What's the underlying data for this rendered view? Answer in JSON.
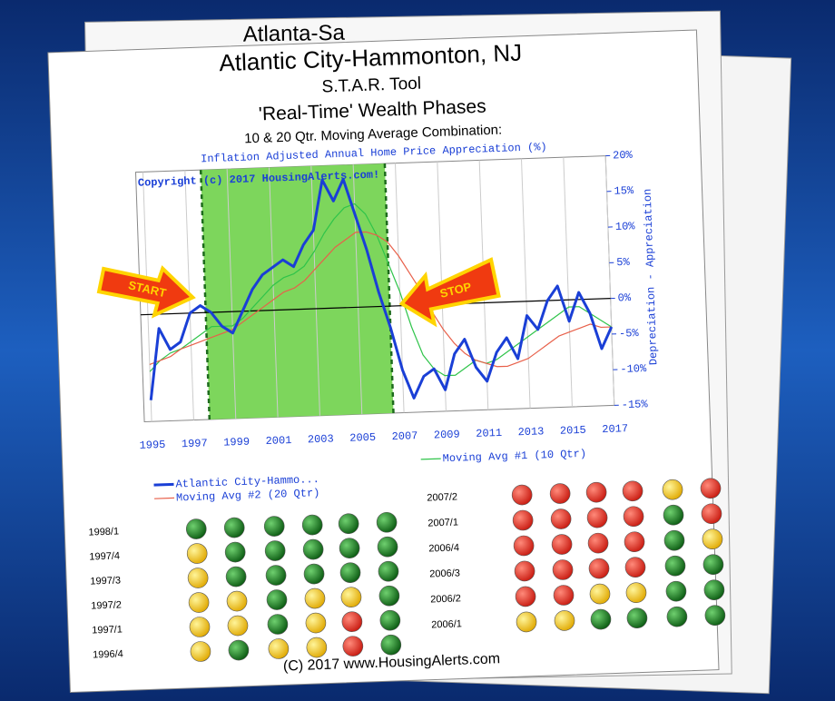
{
  "back_title": "Atlanta-Sa",
  "header": {
    "title": "Atlantic City-Hammonton, NJ",
    "subtitle": "S.T.A.R. Tool",
    "phase_title": "'Real-Time' Wealth Phases",
    "method": "10 & 20 Qtr. Moving Average Combination:"
  },
  "chart_data": {
    "type": "line",
    "title": "Inflation Adjusted Annual Home Price Appreciation (%)",
    "copyright": "Copyright (c) 2017 HousingAlerts.com!",
    "y_label": "Depreciation - Appreciation",
    "annotations": [
      "START",
      "STOP"
    ],
    "shaded_range": [
      1997.75,
      2006.5
    ],
    "shaded_color": "#7dd65c",
    "x": [
      1995,
      1995.5,
      1996,
      1996.5,
      1997,
      1997.5,
      1998,
      1998.5,
      1999,
      1999.5,
      2000,
      2000.5,
      2001,
      2001.5,
      2002,
      2002.5,
      2003,
      2003.5,
      2004,
      2004.5,
      2005,
      2005.5,
      2006,
      2006.5,
      2007,
      2007.5,
      2008,
      2008.5,
      2009,
      2009.5,
      2010,
      2010.5,
      2011,
      2011.5,
      2012,
      2012.5,
      2013,
      2013.5,
      2014,
      2014.5,
      2015,
      2015.5,
      2016,
      2016.5,
      2017
    ],
    "series": [
      {
        "name": "Atlantic City-Hammo...",
        "color": "#1a3fd6",
        "width": 3,
        "values": [
          -12,
          -2,
          -5,
          -4,
          0,
          1,
          0,
          -2,
          -3,
          0,
          3,
          5,
          6,
          7,
          6,
          9,
          11,
          18,
          15,
          18,
          13,
          8,
          2,
          -3,
          -9,
          -13,
          -10,
          -9,
          -12,
          -7,
          -5,
          -9,
          -11,
          -7,
          -5,
          -8,
          -2,
          -4,
          0,
          2,
          -3,
          1,
          -2,
          -7,
          -4
        ]
      },
      {
        "name": "Moving Avg #2 (20 Qtr)",
        "color": "#e8604a",
        "width": 1.2,
        "values": [
          -7,
          -6.5,
          -6,
          -5,
          -4.5,
          -4,
          -3.5,
          -3,
          -2.5,
          -1.5,
          -0.5,
          0.5,
          1.5,
          2.5,
          3,
          4,
          5.5,
          7,
          8.5,
          9.5,
          10.5,
          10.5,
          10,
          9,
          7,
          4.5,
          2,
          -1,
          -3.5,
          -5.5,
          -7,
          -8,
          -8.5,
          -9,
          -9,
          -8.5,
          -8,
          -7,
          -6,
          -5,
          -4.5,
          -4,
          -3.5,
          -4,
          -4
        ]
      },
      {
        "name": "Moving Avg #1 (10 Qtr)",
        "color": "#2fc44a",
        "width": 1.2,
        "values": [
          -8,
          -6.5,
          -5.5,
          -5,
          -4,
          -3,
          -2,
          -2,
          -2,
          -1,
          0.5,
          2,
          3.5,
          4.5,
          5,
          6,
          8,
          10.5,
          12.5,
          14,
          14.5,
          13,
          10,
          6,
          2,
          -3,
          -7,
          -9,
          -10,
          -10,
          -9,
          -8,
          -8.5,
          -8,
          -7,
          -6,
          -5,
          -4,
          -3,
          -2,
          -1,
          -1,
          -2,
          -3,
          -4
        ]
      }
    ],
    "xlim": [
      1995,
      2017
    ],
    "xticks": [
      1995,
      1997,
      1999,
      2001,
      2003,
      2005,
      2007,
      2009,
      2011,
      2013,
      2015,
      2017
    ],
    "ylim": [
      -15,
      20
    ],
    "yticks": [
      {
        "value": 20,
        "label": "20%"
      },
      {
        "value": 15,
        "label": "15%"
      },
      {
        "value": 10,
        "label": "10%"
      },
      {
        "value": 5,
        "label": "5%"
      },
      {
        "value": 0,
        "label": "0%"
      },
      {
        "value": -5,
        "label": "-5%"
      },
      {
        "value": -10,
        "label": "-10%"
      },
      {
        "value": -15,
        "label": "-15%"
      }
    ],
    "grid": true
  },
  "signals_left": {
    "rows": [
      "1998/1",
      "1997/4",
      "1997/3",
      "1997/2",
      "1997/1",
      "1996/4"
    ],
    "colors": [
      [
        "green",
        "green",
        "green",
        "green",
        "green",
        "green"
      ],
      [
        "yellow",
        "green",
        "green",
        "green",
        "green",
        "green"
      ],
      [
        "yellow",
        "green",
        "green",
        "green",
        "green",
        "green"
      ],
      [
        "yellow",
        "yellow",
        "green",
        "yellow",
        "yellow",
        "green"
      ],
      [
        "yellow",
        "yellow",
        "green",
        "yellow",
        "red",
        "green"
      ],
      [
        "yellow",
        "green",
        "yellow",
        "yellow",
        "red",
        "green"
      ]
    ]
  },
  "signals_right": {
    "rows": [
      "2007/2",
      "2007/1",
      "2006/4",
      "2006/3",
      "2006/2",
      "2006/1"
    ],
    "colors": [
      [
        "red",
        "red",
        "red",
        "red",
        "yellow",
        "red"
      ],
      [
        "red",
        "red",
        "red",
        "red",
        "green",
        "red"
      ],
      [
        "red",
        "red",
        "red",
        "red",
        "green",
        "yellow"
      ],
      [
        "red",
        "red",
        "red",
        "red",
        "green",
        "green"
      ],
      [
        "red",
        "red",
        "yellow",
        "yellow",
        "green",
        "green"
      ],
      [
        "yellow",
        "yellow",
        "green",
        "green",
        "green",
        "green"
      ]
    ]
  },
  "footer": "(C) 2017 www.HousingAlerts.com"
}
